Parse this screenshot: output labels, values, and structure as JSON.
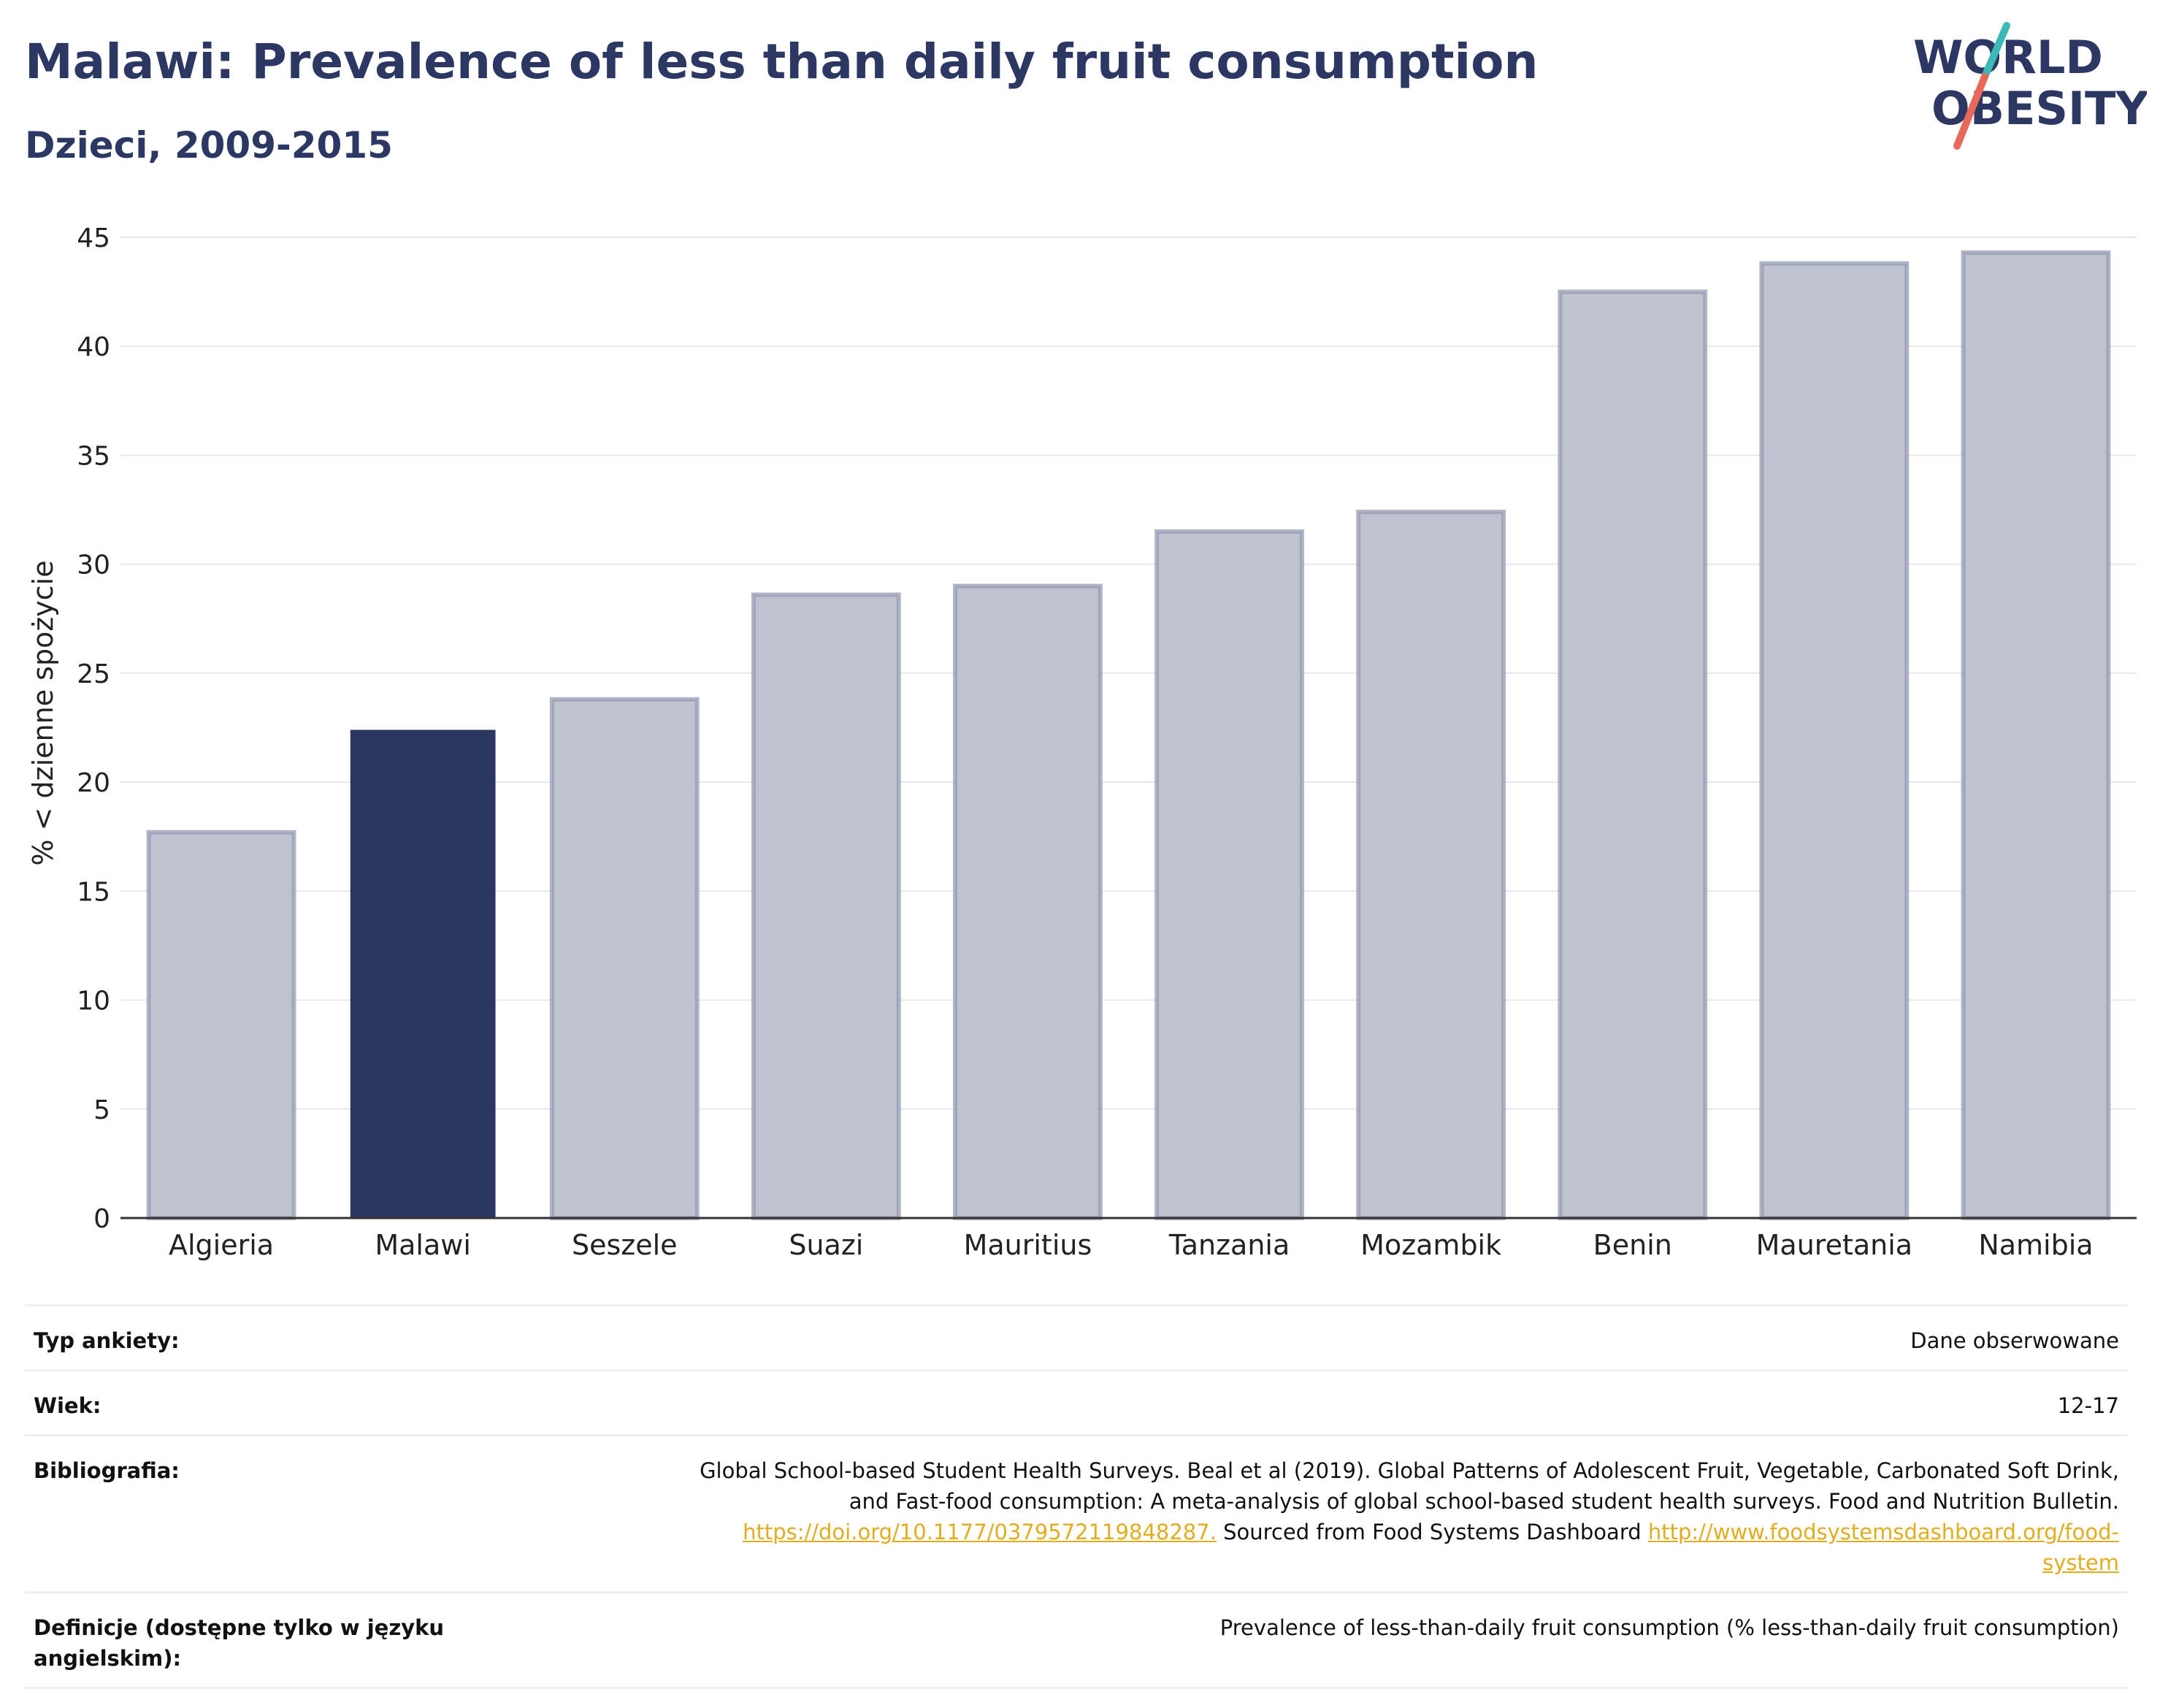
{
  "header": {
    "title": "Malawi: Prevalence of less than daily fruit consumption",
    "subtitle": "Dzieci, 2009-2015"
  },
  "logo": {
    "line1": "WORLD",
    "line2": "OBESITY",
    "accent_teal": "#3cb9b6",
    "accent_coral": "#e8685a",
    "text_color": "#2c3763"
  },
  "chart_data": {
    "type": "bar",
    "categories": [
      "Algieria",
      "Malawi",
      "Seszele",
      "Suazi",
      "Mauritius",
      "Tanzania",
      "Mozambik",
      "Benin",
      "Mauretania",
      "Namibia"
    ],
    "values": [
      17.7,
      22.4,
      23.8,
      28.6,
      29.0,
      31.5,
      32.4,
      42.5,
      43.8,
      44.3
    ],
    "highlight": "Malawi",
    "ylabel": "% < dzienne spożycie",
    "xlabel": "",
    "ylim": [
      0,
      45
    ],
    "yticks": [
      0,
      5,
      10,
      15,
      20,
      25,
      30,
      35,
      40,
      45
    ],
    "grid": true,
    "colors": {
      "bar": "#bfc2cf",
      "bar_border": "#959bb3",
      "highlight": "#2a365f"
    }
  },
  "info": {
    "survey_label": "Typ ankiety:",
    "survey_value": "Dane obserwowane",
    "age_label": "Wiek:",
    "age_value": "12-17",
    "bib_label": "Bibliografia:",
    "bib_text_1": "Global School-based Student Health Surveys. Beal et al (2019). Global Patterns of Adolescent Fruit, Vegetable, Carbonated Soft Drink,",
    "bib_text_2": "and Fast-food consumption: A meta-analysis of global school-based student health surveys. Food and Nutrition Bulletin.",
    "bib_link_1": "https://doi.org/10.1177/0379572119848287.",
    "bib_text_3": " Sourced from Food Systems Dashboard ",
    "bib_link_2a": "http://www.foodsystemsdashboard.org/food-",
    "bib_link_2b": "system",
    "def_label": "Definicje (dostępne tylko w języku angielskim):",
    "def_value": "Prevalence of less-than-daily fruit consumption (% less-than-daily fruit consumption)"
  }
}
